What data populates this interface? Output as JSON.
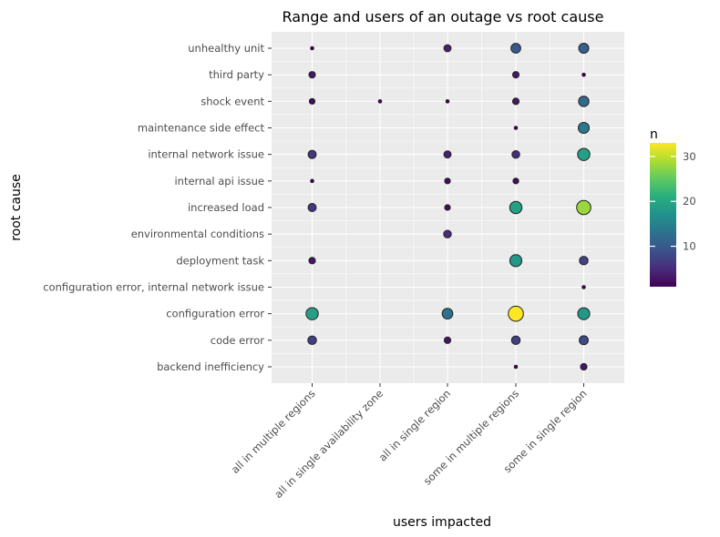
{
  "chart_data": {
    "type": "scatter",
    "title": "Range and users of an outage vs root cause",
    "xlabel": "users impacted",
    "ylabel": "root cause",
    "x_categories": [
      "all in multiple regions",
      "all in single availability zone",
      "all in single region",
      "some in multiple regions",
      "some in single region"
    ],
    "y_categories": [
      "backend inefficiency",
      "code error",
      "configuration error",
      "configuration error, internal network issue",
      "deployment task",
      "environmental conditions",
      "increased load",
      "internal api issue",
      "internal network issue",
      "maintenance side effect",
      "shock event",
      "third party",
      "unhealthy unit"
    ],
    "legend": {
      "title": "n",
      "ticks": [
        10,
        20,
        30
      ],
      "range": [
        1,
        33
      ],
      "placement": "right"
    },
    "grid": true,
    "points": [
      {
        "x": "all in multiple regions",
        "y": "unhealthy unit",
        "n": 1
      },
      {
        "x": "all in single region",
        "y": "unhealthy unit",
        "n": 4
      },
      {
        "x": "some in multiple regions",
        "y": "unhealthy unit",
        "n": 10
      },
      {
        "x": "some in single region",
        "y": "unhealthy unit",
        "n": 11
      },
      {
        "x": "all in multiple regions",
        "y": "third party",
        "n": 3
      },
      {
        "x": "some in multiple regions",
        "y": "third party",
        "n": 3
      },
      {
        "x": "some in single region",
        "y": "third party",
        "n": 1
      },
      {
        "x": "all in multiple regions",
        "y": "shock event",
        "n": 2
      },
      {
        "x": "all in single availability zone",
        "y": "shock event",
        "n": 1
      },
      {
        "x": "all in single region",
        "y": "shock event",
        "n": 1
      },
      {
        "x": "some in multiple regions",
        "y": "shock event",
        "n": 3
      },
      {
        "x": "some in single region",
        "y": "shock event",
        "n": 12
      },
      {
        "x": "some in multiple regions",
        "y": "maintenance side effect",
        "n": 1
      },
      {
        "x": "some in single region",
        "y": "maintenance side effect",
        "n": 14
      },
      {
        "x": "all in multiple regions",
        "y": "internal network issue",
        "n": 6
      },
      {
        "x": "all in single region",
        "y": "internal network issue",
        "n": 4
      },
      {
        "x": "some in multiple regions",
        "y": "internal network issue",
        "n": 5
      },
      {
        "x": "some in single region",
        "y": "internal network issue",
        "n": 19
      },
      {
        "x": "all in multiple regions",
        "y": "internal api issue",
        "n": 1
      },
      {
        "x": "all in single region",
        "y": "internal api issue",
        "n": 2
      },
      {
        "x": "some in multiple regions",
        "y": "internal api issue",
        "n": 2
      },
      {
        "x": "all in multiple regions",
        "y": "increased load",
        "n": 6
      },
      {
        "x": "all in single region",
        "y": "increased load",
        "n": 2
      },
      {
        "x": "some in multiple regions",
        "y": "increased load",
        "n": 19
      },
      {
        "x": "some in single region",
        "y": "increased load",
        "n": 28
      },
      {
        "x": "all in single region",
        "y": "environmental conditions",
        "n": 5
      },
      {
        "x": "all in multiple regions",
        "y": "deployment task",
        "n": 3
      },
      {
        "x": "some in multiple regions",
        "y": "deployment task",
        "n": 18
      },
      {
        "x": "some in single region",
        "y": "deployment task",
        "n": 7
      },
      {
        "x": "some in single region",
        "y": "configuration error, internal network issue",
        "n": 1
      },
      {
        "x": "all in multiple regions",
        "y": "configuration error",
        "n": 19
      },
      {
        "x": "all in single region",
        "y": "configuration error",
        "n": 13
      },
      {
        "x": "some in multiple regions",
        "y": "configuration error",
        "n": 33
      },
      {
        "x": "some in single region",
        "y": "configuration error",
        "n": 18
      },
      {
        "x": "all in multiple regions",
        "y": "code error",
        "n": 7
      },
      {
        "x": "all in single region",
        "y": "code error",
        "n": 3
      },
      {
        "x": "some in multiple regions",
        "y": "code error",
        "n": 7
      },
      {
        "x": "some in single region",
        "y": "code error",
        "n": 8
      },
      {
        "x": "some in multiple regions",
        "y": "backend inefficiency",
        "n": 1
      },
      {
        "x": "some in single region",
        "y": "backend inefficiency",
        "n": 3
      }
    ]
  },
  "colors": {
    "panel": "#ebebeb",
    "grid": "#ffffff",
    "point_stroke": "#222222",
    "text": "#000000",
    "tick_text": "#4d4d4d",
    "viridis": [
      "#440154",
      "#472d7b",
      "#3b528b",
      "#2c728e",
      "#21918c",
      "#28ae80",
      "#5ec962",
      "#addc30",
      "#fde725"
    ]
  }
}
